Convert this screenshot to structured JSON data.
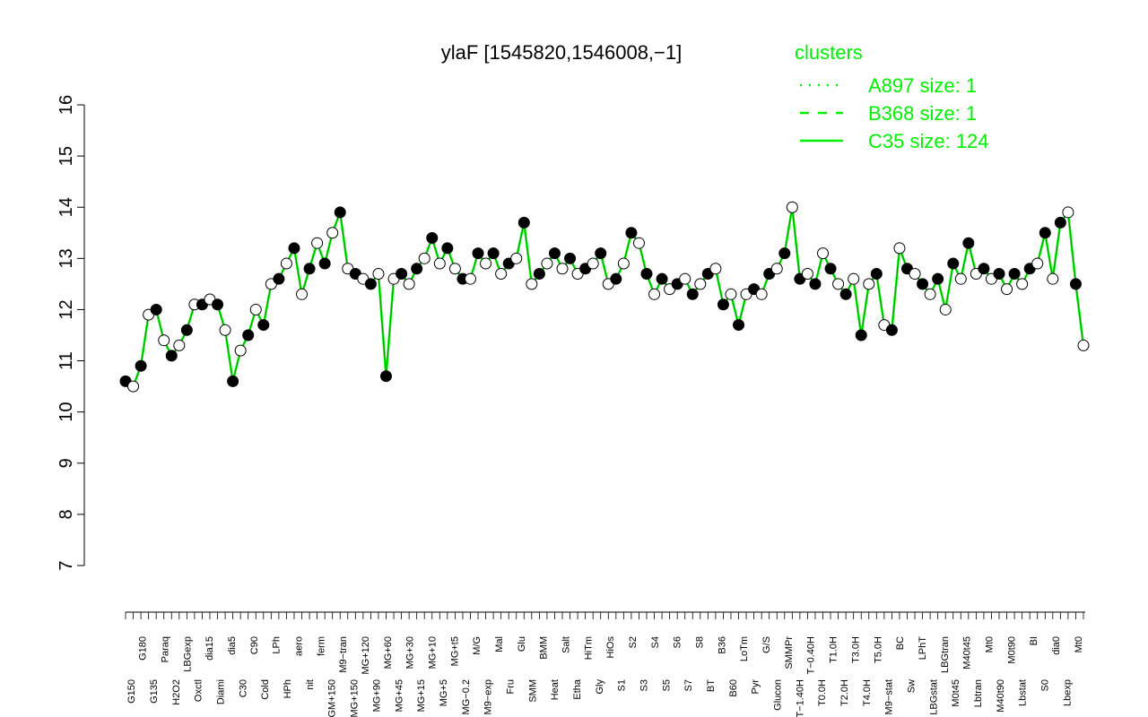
{
  "chart_data": {
    "type": "scatter",
    "title": "ylaF [1545820,1546008,−1]",
    "xlabel": "",
    "ylabel": "",
    "ylim": [
      7,
      16
    ],
    "yticks": [
      7,
      8,
      9,
      10,
      11,
      12,
      13,
      14,
      15,
      16
    ],
    "grid": false,
    "legend": {
      "title": "clusters",
      "position": "top-right",
      "color": "#00ee00",
      "entries": [
        {
          "label": "A897 size: 1",
          "line": "dotted"
        },
        {
          "label": "B368 size: 1",
          "line": "dashed"
        },
        {
          "label": "C35 size: 124",
          "line": "solid"
        }
      ]
    },
    "colors": {
      "line": "#00ee00",
      "point_stroke": "#000000"
    },
    "x_tick_labels_visible": [
      "G150",
      "G180",
      "G135",
      "Paraq",
      "H2O2",
      "LBGexp",
      "Oxctl",
      "dia15",
      "Diami",
      "dia5",
      "C30",
      "C90",
      "Cold",
      "LPh",
      "HPh",
      "aero",
      "nit",
      "ferm",
      "GM+150",
      "M9−tran",
      "MG+150",
      "MG+120",
      "MG+90",
      "MG+60",
      "MG+45",
      "MG+30",
      "MG+15",
      "MG+10",
      "MG+5",
      "MG+t5",
      "MG−0.2",
      "M/G",
      "M9−exp",
      "Mal",
      "Fru",
      "Glu",
      "SMM",
      "BMM",
      "Heat",
      "Salt",
      "Etha",
      "HiTm",
      "Gly",
      "HiOs",
      "S1",
      "S2",
      "S3",
      "S4",
      "S5",
      "S6",
      "S7",
      "S8",
      "BT",
      "B36",
      "B60",
      "LoTm",
      "Pyr",
      "G/S",
      "Glucon",
      "SMMPr",
      "T−1.40H",
      "T−0.40H",
      "T0.0H",
      "T1.0H",
      "T2.0H",
      "T3.0H",
      "T4.0H",
      "T5.0H",
      "M9−stat",
      "BC",
      "Sw",
      "LPhT",
      "LBGstat",
      "LBGtran",
      "M0t45",
      "M40t45",
      "Lbtran",
      "Mt0",
      "M40t90",
      "M0t90",
      "Lbstat",
      "BI",
      "S0",
      "dia0",
      "Lbexp",
      "Mt0"
    ],
    "x": [
      1,
      2,
      3,
      4,
      5,
      6,
      7,
      8,
      9,
      10,
      11,
      12,
      13,
      14,
      15,
      16,
      17,
      18,
      19,
      20,
      21,
      22,
      23,
      24,
      25,
      26,
      27,
      28,
      29,
      30,
      31,
      32,
      33,
      34,
      35,
      36,
      37,
      38,
      39,
      40,
      41,
      42,
      43,
      44,
      45,
      46,
      47,
      48,
      49,
      50,
      51,
      52,
      53,
      54,
      55,
      56,
      57,
      58,
      59,
      60,
      61,
      62,
      63,
      64,
      65,
      66,
      67,
      68,
      69,
      70,
      71,
      72,
      73,
      74,
      75,
      76,
      77,
      78,
      79,
      80,
      81,
      82,
      83,
      84,
      85,
      86,
      87,
      88,
      89,
      90,
      91,
      92,
      93,
      94,
      95,
      96,
      97,
      98,
      99,
      100,
      101,
      102,
      103,
      104,
      105,
      106,
      107,
      108,
      109,
      110,
      111,
      112,
      113,
      114,
      115,
      116,
      117,
      118,
      119,
      120,
      121,
      122,
      123,
      124,
      125,
      126
    ],
    "series": [
      {
        "name": "C35 size: 124",
        "values": [
          10.6,
          10.5,
          10.9,
          11.9,
          12.0,
          11.4,
          11.1,
          11.3,
          11.6,
          12.1,
          12.1,
          12.2,
          12.1,
          11.6,
          10.6,
          11.2,
          11.5,
          12.0,
          11.7,
          12.5,
          12.6,
          12.9,
          13.2,
          12.3,
          12.8,
          13.3,
          12.9,
          13.5,
          13.9,
          12.8,
          12.7,
          12.6,
          12.5,
          12.7,
          10.7,
          12.6,
          12.7,
          12.5,
          12.8,
          13.0,
          13.4,
          12.9,
          13.2,
          12.8,
          12.6,
          12.6,
          13.1,
          12.9,
          13.1,
          12.7,
          12.9,
          13.0,
          13.7,
          12.5,
          12.7,
          12.9,
          13.1,
          12.8,
          13.0,
          12.7,
          12.8,
          12.9,
          13.1,
          12.5,
          12.6,
          12.9,
          13.5,
          13.3,
          12.7,
          12.3,
          12.6,
          12.4,
          12.5,
          12.6,
          12.3,
          12.5,
          12.7,
          12.8,
          12.1,
          12.3,
          11.7,
          12.3,
          12.4,
          12.3,
          12.7,
          12.8,
          13.1,
          14.0,
          12.6,
          12.7,
          12.5,
          13.1,
          12.8,
          12.5,
          12.3,
          12.6,
          11.5,
          12.5,
          12.7,
          11.7,
          11.6,
          13.2,
          12.8,
          12.7,
          12.5,
          12.3,
          12.6,
          12.0,
          12.9,
          12.6,
          13.3,
          12.7,
          12.8,
          12.6,
          12.7,
          12.4,
          12.7,
          12.5,
          12.8,
          12.9,
          13.5,
          12.6,
          13.7,
          13.9,
          12.5,
          11.3
        ]
      }
    ]
  }
}
